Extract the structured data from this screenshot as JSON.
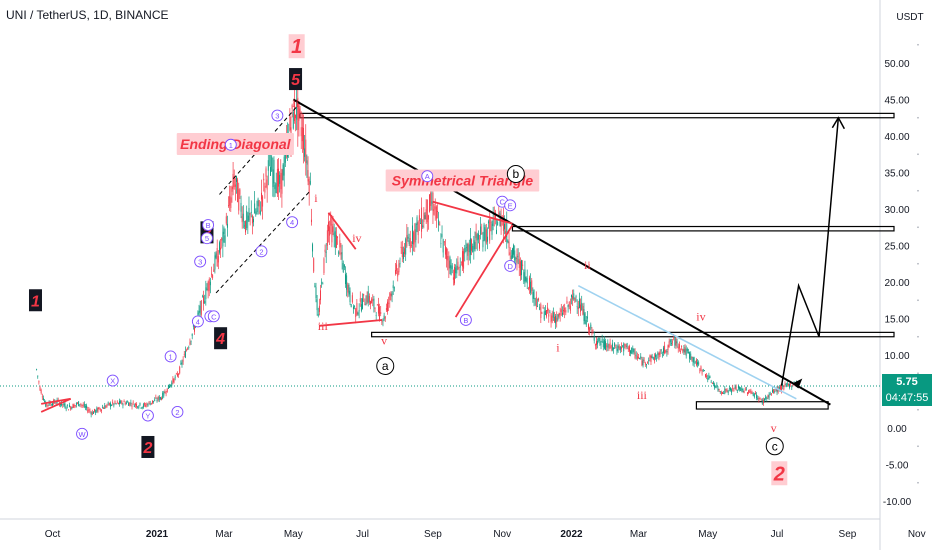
{
  "symbol_title": "UNI / TetherUS, 1D, BINANCE",
  "currency": "USDT",
  "last_price": "5.75",
  "countdown": "04:47:55",
  "colors": {
    "red": "#f23645",
    "black": "#000000",
    "blue": "#7c4dff",
    "light_blue": "#9fd2f0",
    "bull": "#089981",
    "bear": "#f23645",
    "price_line": "#089981",
    "label_bg": "#ffcdd2"
  },
  "chart_data": {
    "type": "candlestick",
    "title": "UNI / TetherUS, 1D, BINANCE",
    "y_axis_label": "USDT",
    "y_ticks": [
      "50.00",
      "45.00",
      "40.00",
      "35.00",
      "30.00",
      "25.00",
      "20.00",
      "15.00",
      "10.00",
      "5.00",
      "0.00",
      "-5.00",
      "-10.00"
    ],
    "x_ticks": [
      "Oct",
      "2021",
      "Mar",
      "May",
      "Jul",
      "Sep",
      "Nov",
      "2022",
      "Mar",
      "May",
      "Jul",
      "Sep",
      "Nov"
    ],
    "ylim": [
      -11,
      53
    ],
    "price_path": [
      [
        "2020-09-17",
        8
      ],
      [
        "2020-09-20",
        5.5
      ],
      [
        "2020-09-25",
        3.2
      ],
      [
        "2020-10-05",
        3.6
      ],
      [
        "2020-10-15",
        2.8
      ],
      [
        "2020-10-25",
        3.4
      ],
      [
        "2020-11-05",
        2.1
      ],
      [
        "2020-11-20",
        3.2
      ],
      [
        "2020-12-05",
        3.5
      ],
      [
        "2020-12-20",
        3.0
      ],
      [
        "2021-01-05",
        4.2
      ],
      [
        "2021-01-20",
        7.5
      ],
      [
        "2021-01-30",
        12
      ],
      [
        "2021-02-08",
        16
      ],
      [
        "2021-02-20",
        22
      ],
      [
        "2021-03-01",
        26
      ],
      [
        "2021-03-10",
        34
      ],
      [
        "2021-03-20",
        28
      ],
      [
        "2021-04-01",
        30
      ],
      [
        "2021-04-10",
        36
      ],
      [
        "2021-04-20",
        33
      ],
      [
        "2021-04-28",
        41
      ],
      [
        "2021-05-03",
        44
      ],
      [
        "2021-05-10",
        40
      ],
      [
        "2021-05-16",
        33
      ],
      [
        "2021-05-19",
        22
      ],
      [
        "2021-05-23",
        15
      ],
      [
        "2021-06-01",
        28
      ],
      [
        "2021-06-10",
        25
      ],
      [
        "2021-06-20",
        18
      ],
      [
        "2021-06-25",
        16
      ],
      [
        "2021-07-05",
        18
      ],
      [
        "2021-07-20",
        15
      ],
      [
        "2021-08-05",
        24
      ],
      [
        "2021-08-20",
        28
      ],
      [
        "2021-09-01",
        31
      ],
      [
        "2021-09-10",
        25
      ],
      [
        "2021-09-20",
        21
      ],
      [
        "2021-10-05",
        25
      ],
      [
        "2021-10-20",
        27
      ],
      [
        "2021-11-01",
        29
      ],
      [
        "2021-11-10",
        24
      ],
      [
        "2021-11-25",
        20
      ],
      [
        "2021-12-05",
        16
      ],
      [
        "2021-12-20",
        15
      ],
      [
        "2022-01-05",
        18
      ],
      [
        "2022-01-22",
        12
      ],
      [
        "2022-02-05",
        11
      ],
      [
        "2022-02-20",
        11
      ],
      [
        "2022-03-05",
        9
      ],
      [
        "2022-03-20",
        10
      ],
      [
        "2022-04-01",
        12
      ],
      [
        "2022-04-15",
        10
      ],
      [
        "2022-05-01",
        7
      ],
      [
        "2022-05-12",
        5
      ],
      [
        "2022-05-28",
        5.4
      ],
      [
        "2022-06-10",
        4.8
      ],
      [
        "2022-06-18",
        3.6
      ],
      [
        "2022-06-28",
        5
      ],
      [
        "2022-07-10",
        5.8
      ],
      [
        "2022-07-18",
        6.1
      ]
    ],
    "annotations": {
      "ending_diagonal": "Ending Diagonal",
      "symmetrical_triangle": "Symmetrical Triangle"
    }
  },
  "wave_labels": [
    {
      "id": "big-1-top",
      "text": "1",
      "style": "pink",
      "date": "2021-05-04",
      "price": 52.3
    },
    {
      "id": "big-2-bottom",
      "text": "2",
      "style": "pink",
      "date": "2022-07-03",
      "price": -6.2
    },
    {
      "id": "w1",
      "text": "1",
      "style": "black",
      "date": "2020-09-16",
      "price": 17.5
    },
    {
      "id": "w2",
      "text": "2",
      "style": "black",
      "date": "2020-12-24",
      "price": -2.6
    },
    {
      "id": "w3",
      "text": "3",
      "style": "black",
      "date": "2021-02-14",
      "price": 26.8
    },
    {
      "id": "w4",
      "text": "4",
      "style": "black",
      "date": "2021-02-26",
      "price": 12.3
    },
    {
      "id": "w5",
      "text": "5",
      "style": "black",
      "date": "2021-05-03",
      "price": 47.8
    },
    {
      "id": "r-i-1",
      "text": "i",
      "style": "red",
      "date": "2021-05-21",
      "price": 31.5
    },
    {
      "id": "r-ii-1",
      "text": "ii",
      "style": "red",
      "date": "2021-05-03",
      "price": 44.5
    },
    {
      "id": "r-iii-1",
      "text": "iii",
      "style": "red",
      "date": "2021-05-27",
      "price": 14.0
    },
    {
      "id": "r-iv-1",
      "text": "iv",
      "style": "red",
      "date": "2021-06-26",
      "price": 26.0
    },
    {
      "id": "r-v-1",
      "text": "v",
      "style": "red",
      "date": "2021-07-20",
      "price": 12.0
    },
    {
      "id": "r-i-2",
      "text": "i",
      "style": "red",
      "date": "2021-12-20",
      "price": 11.0
    },
    {
      "id": "r-ii-2",
      "text": "ii",
      "style": "red",
      "date": "2022-01-15",
      "price": 22.3
    },
    {
      "id": "r-iii-2",
      "text": "iii",
      "style": "red",
      "date": "2022-03-04",
      "price": 4.5
    },
    {
      "id": "r-iv-2",
      "text": "iv",
      "style": "red",
      "date": "2022-04-25",
      "price": 15.3
    },
    {
      "id": "r-v-2",
      "text": "v",
      "style": "red",
      "date": "2022-06-28",
      "price": 0.0
    },
    {
      "id": "b-a",
      "text": "a",
      "style": "circle-black",
      "date": "2021-07-21",
      "price": 8.5
    },
    {
      "id": "b-b",
      "text": "b",
      "style": "circle-black",
      "date": "2021-11-13",
      "price": 34.8
    },
    {
      "id": "b-c",
      "text": "c",
      "style": "circle-black",
      "date": "2022-06-29",
      "price": -2.5
    },
    {
      "id": "p-w",
      "text": "W",
      "style": "circle-purple",
      "date": "2020-10-27",
      "price": -0.8
    },
    {
      "id": "p-x",
      "text": "X",
      "style": "circle-purple",
      "date": "2020-11-23",
      "price": 6.5
    },
    {
      "id": "p-y",
      "text": "Y",
      "style": "circle-purple",
      "date": "2020-12-24",
      "price": 1.7
    },
    {
      "id": "p-1a",
      "text": "1",
      "style": "circle-purple",
      "date": "2021-01-13",
      "price": 9.8
    },
    {
      "id": "p-2a",
      "text": "2",
      "style": "circle-purple",
      "date": "2021-01-19",
      "price": 2.2
    },
    {
      "id": "p-3a",
      "text": "3",
      "style": "circle-purple",
      "date": "2021-02-08",
      "price": 22.8
    },
    {
      "id": "p-4a",
      "text": "4",
      "style": "circle-purple",
      "date": "2021-02-06",
      "price": 14.6
    },
    {
      "id": "p-5a",
      "text": "5",
      "style": "circle-purple",
      "date": "2021-02-14",
      "price": 26.0
    },
    {
      "id": "p-A1",
      "text": "A",
      "style": "circle-purple",
      "date": "2021-02-17",
      "price": 15.3
    },
    {
      "id": "p-B1",
      "text": "B",
      "style": "circle-purple",
      "date": "2021-02-15",
      "price": 27.8
    },
    {
      "id": "p-C1",
      "text": "C",
      "style": "circle-purple",
      "date": "2021-02-20",
      "price": 15.3
    },
    {
      "id": "p-1b",
      "text": "1",
      "style": "circle-purple",
      "date": "2021-03-07",
      "price": 38.8
    },
    {
      "id": "p-2b",
      "text": "2",
      "style": "circle-purple",
      "date": "2021-04-03",
      "price": 24.2
    },
    {
      "id": "p-3b",
      "text": "3",
      "style": "circle-purple",
      "date": "2021-04-17",
      "price": 42.8
    },
    {
      "id": "p-4b",
      "text": "4",
      "style": "circle-purple",
      "date": "2021-04-30",
      "price": 28.2
    },
    {
      "id": "p-A2",
      "text": "A",
      "style": "circle-purple",
      "date": "2021-08-27",
      "price": 34.5
    },
    {
      "id": "p-B2",
      "text": "B",
      "style": "circle-purple",
      "date": "2021-09-30",
      "price": 14.8
    },
    {
      "id": "p-C2",
      "text": "C",
      "style": "circle-purple",
      "date": "2021-11-01",
      "price": 31.0
    },
    {
      "id": "p-D2",
      "text": "D",
      "style": "circle-purple",
      "date": "2021-11-08",
      "price": 22.2
    },
    {
      "id": "p-E2",
      "text": "E",
      "style": "circle-purple",
      "date": "2021-11-08",
      "price": 30.5
    }
  ]
}
